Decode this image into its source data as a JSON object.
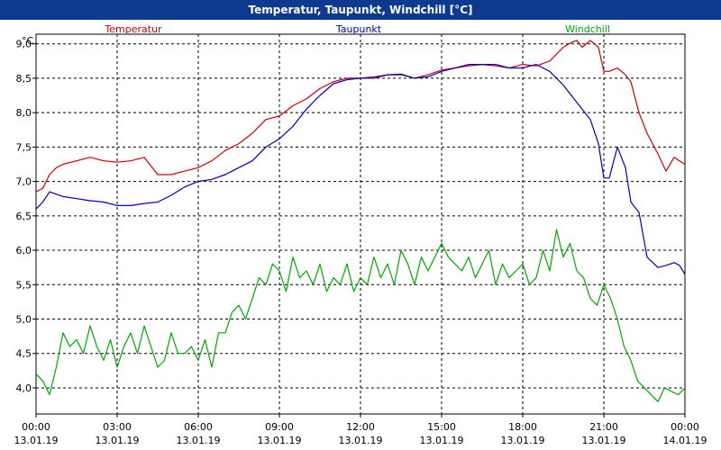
{
  "chart_data": {
    "type": "line",
    "title": "Temperatur, Taupunkt, Windchill [°C]",
    "ylabel": "°C",
    "ylim": [
      3.62,
      9.14
    ],
    "y_ticks": [
      4.0,
      4.5,
      5.0,
      5.5,
      6.0,
      6.5,
      7.0,
      7.5,
      8.0,
      8.5,
      9.0
    ],
    "y_tick_labels": [
      "4,0",
      "4,5",
      "5,0",
      "5,5",
      "6,0",
      "6,5",
      "7,0",
      "7,5",
      "8,0",
      "8,5",
      "9,0"
    ],
    "xlim": [
      0,
      24
    ],
    "x_ticks": [
      {
        "h": 0,
        "time": "00:00",
        "date": "13.01.19"
      },
      {
        "h": 3,
        "time": "03:00",
        "date": "13.01.19"
      },
      {
        "h": 6,
        "time": "06:00",
        "date": "13.01.19"
      },
      {
        "h": 9,
        "time": "09:00",
        "date": "13.01.19"
      },
      {
        "h": 12,
        "time": "12:00",
        "date": "13.01.19"
      },
      {
        "h": 15,
        "time": "15:00",
        "date": "13.01.19"
      },
      {
        "h": 18,
        "time": "18:00",
        "date": "13.01.19"
      },
      {
        "h": 21,
        "time": "21:00",
        "date": "13.01.19"
      },
      {
        "h": 24,
        "time": "00:00",
        "date": "14.01.19"
      }
    ],
    "grid": true,
    "series": [
      {
        "name": "Temperatur",
        "color": "#cc0000",
        "x": [
          0,
          0.25,
          0.5,
          0.75,
          1,
          1.5,
          2,
          2.5,
          3,
          3.5,
          4,
          4.5,
          5,
          5.5,
          6,
          6.5,
          7,
          7.5,
          8,
          8.5,
          9,
          9.5,
          10,
          10.5,
          11,
          11.5,
          12,
          12.5,
          13,
          13.5,
          14,
          14.5,
          15,
          15.5,
          16,
          16.5,
          17,
          17.5,
          18,
          18.5,
          19,
          19.5,
          19.8,
          20,
          20.2,
          20.5,
          20.8,
          21,
          21.2,
          21.5,
          21.8,
          22,
          22.3,
          22.6,
          23,
          23.3,
          23.6,
          23.8,
          24
        ],
        "values": [
          6.85,
          6.9,
          7.1,
          7.2,
          7.25,
          7.3,
          7.35,
          7.3,
          7.28,
          7.3,
          7.35,
          7.1,
          7.1,
          7.15,
          7.2,
          7.3,
          7.45,
          7.55,
          7.7,
          7.9,
          7.95,
          8.1,
          8.2,
          8.35,
          8.45,
          8.5,
          8.5,
          8.52,
          8.55,
          8.55,
          8.5,
          8.55,
          8.62,
          8.65,
          8.68,
          8.7,
          8.68,
          8.65,
          8.7,
          8.68,
          8.75,
          8.95,
          9.02,
          9.05,
          8.95,
          9.05,
          8.95,
          8.6,
          8.6,
          8.65,
          8.55,
          8.45,
          8.0,
          7.7,
          7.4,
          7.15,
          7.35,
          7.3,
          7.25
        ]
      },
      {
        "name": "Taupunkt",
        "color": "#0000bb",
        "x": [
          0,
          0.25,
          0.5,
          1,
          1.5,
          2,
          2.5,
          3,
          3.5,
          4,
          4.5,
          5,
          5.5,
          6,
          6.5,
          7,
          7.5,
          8,
          8.5,
          9,
          9.5,
          10,
          10.5,
          11,
          11.5,
          12,
          12.5,
          13,
          13.5,
          14,
          14.5,
          15,
          15.5,
          16,
          16.5,
          17,
          17.5,
          18,
          18.5,
          19,
          19.5,
          20,
          20.5,
          20.8,
          21,
          21.2,
          21.5,
          21.8,
          22,
          22.3,
          22.6,
          23,
          23.3,
          23.6,
          23.8,
          24
        ],
        "values": [
          6.6,
          6.7,
          6.85,
          6.78,
          6.75,
          6.72,
          6.7,
          6.65,
          6.65,
          6.68,
          6.7,
          6.8,
          6.92,
          7.0,
          7.03,
          7.1,
          7.2,
          7.3,
          7.5,
          7.62,
          7.8,
          8.05,
          8.25,
          8.42,
          8.48,
          8.5,
          8.5,
          8.55,
          8.56,
          8.5,
          8.52,
          8.6,
          8.65,
          8.7,
          8.7,
          8.7,
          8.65,
          8.65,
          8.7,
          8.6,
          8.4,
          8.15,
          7.9,
          7.55,
          7.05,
          7.05,
          7.5,
          7.2,
          6.7,
          6.55,
          5.9,
          5.75,
          5.78,
          5.82,
          5.78,
          5.65
        ]
      },
      {
        "name": "Windchill",
        "color": "#00aa00",
        "x": [
          0,
          0.25,
          0.5,
          0.75,
          1,
          1.25,
          1.5,
          1.75,
          2,
          2.25,
          2.5,
          2.75,
          3,
          3.25,
          3.5,
          3.75,
          4,
          4.25,
          4.5,
          4.75,
          5,
          5.25,
          5.5,
          5.75,
          6,
          6.25,
          6.5,
          6.75,
          7,
          7.25,
          7.5,
          7.75,
          8,
          8.25,
          8.5,
          8.75,
          9,
          9.25,
          9.5,
          9.75,
          10,
          10.25,
          10.5,
          10.75,
          11,
          11.25,
          11.5,
          11.75,
          12,
          12.25,
          12.5,
          12.75,
          13,
          13.25,
          13.5,
          13.75,
          14,
          14.25,
          14.5,
          14.75,
          15,
          15.25,
          15.5,
          15.75,
          16,
          16.25,
          16.5,
          16.75,
          17,
          17.25,
          17.5,
          17.75,
          18,
          18.25,
          18.5,
          18.75,
          19,
          19.25,
          19.5,
          19.75,
          20,
          20.25,
          20.5,
          20.75,
          21,
          21.25,
          21.5,
          21.75,
          22,
          22.25,
          22.5,
          22.75,
          23,
          23.25,
          23.5,
          23.75,
          24
        ],
        "values": [
          4.2,
          4.1,
          3.9,
          4.3,
          4.8,
          4.6,
          4.7,
          4.5,
          4.9,
          4.6,
          4.4,
          4.7,
          4.3,
          4.6,
          4.8,
          4.5,
          4.9,
          4.6,
          4.3,
          4.4,
          4.8,
          4.5,
          4.5,
          4.6,
          4.4,
          4.7,
          4.3,
          4.8,
          4.8,
          5.1,
          5.2,
          5.0,
          5.3,
          5.6,
          5.5,
          5.8,
          5.7,
          5.4,
          5.9,
          5.6,
          5.7,
          5.5,
          5.8,
          5.4,
          5.6,
          5.5,
          5.8,
          5.4,
          5.6,
          5.5,
          5.9,
          5.6,
          5.8,
          5.5,
          6.0,
          5.8,
          5.5,
          5.9,
          5.7,
          5.9,
          6.1,
          5.9,
          5.8,
          5.7,
          5.9,
          5.6,
          5.8,
          6.0,
          5.5,
          5.8,
          5.6,
          5.7,
          5.8,
          5.5,
          5.6,
          6.0,
          5.7,
          6.3,
          5.9,
          6.1,
          5.7,
          5.6,
          5.3,
          5.2,
          5.5,
          5.3,
          5.0,
          4.6,
          4.4,
          4.1,
          4.0,
          3.9,
          3.8,
          4.0,
          3.95,
          3.9,
          4.0
        ]
      }
    ]
  }
}
